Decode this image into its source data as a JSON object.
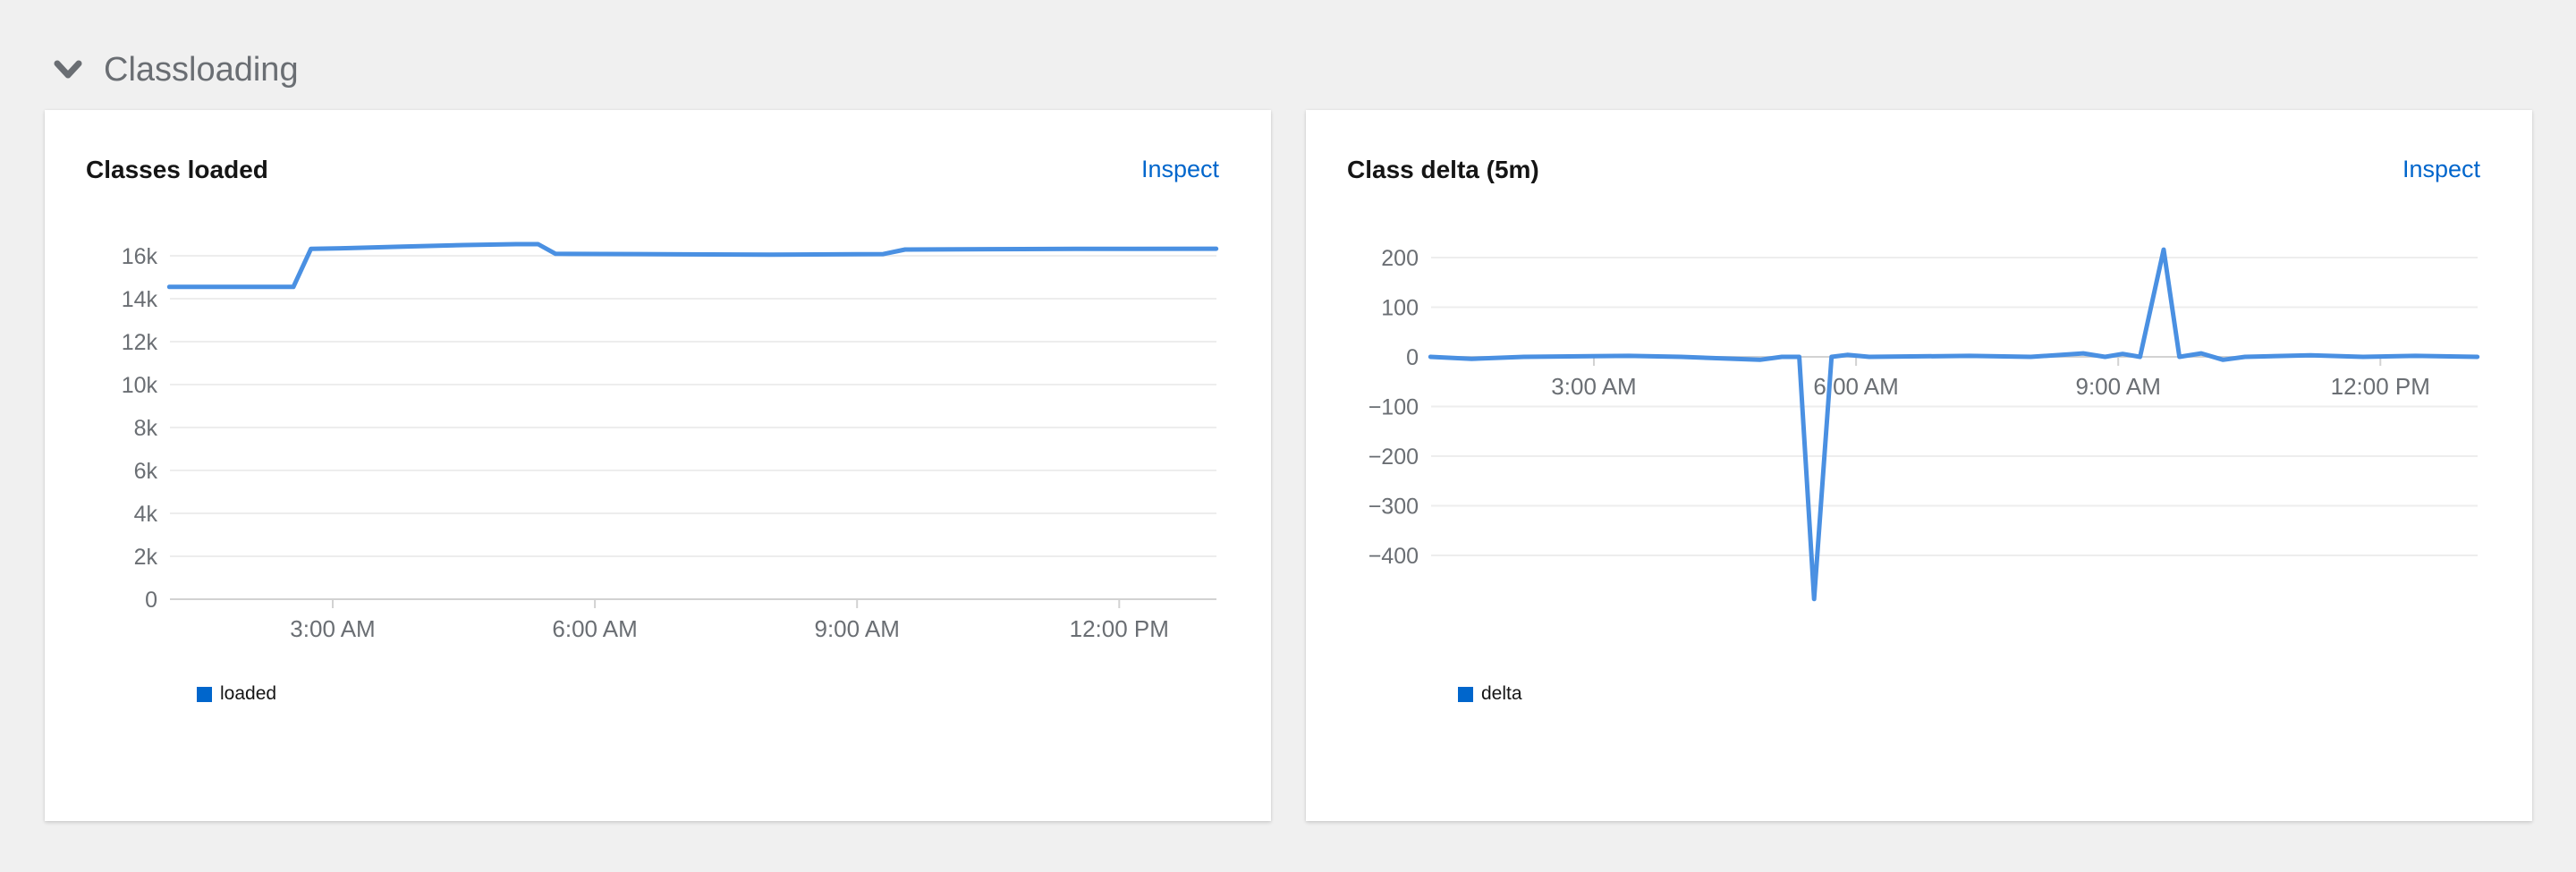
{
  "section": {
    "title": "Classloading",
    "chevron_icon": "chevron-down-icon",
    "expanded": true
  },
  "colors": {
    "accent_link": "#0066cc",
    "line_blue": "#4a90e2",
    "legend_blue": "#0066cc",
    "tick_label_gray": "#6a6e73",
    "gridline_gray": "#ededed",
    "axis_gray": "#d2d2d2",
    "page_background": "#f0f0f0"
  },
  "cards": [
    {
      "title": "Classes loaded",
      "inspect_label": "Inspect",
      "legend_label": "loaded",
      "legend_color": "#0066cc"
    },
    {
      "title": "Class delta (5m)",
      "inspect_label": "Inspect",
      "legend_label": "delta",
      "legend_color": "#0066cc"
    }
  ],
  "chart_data": [
    {
      "type": "line",
      "title": "Classes loaded",
      "legend_entries": [
        "loaded"
      ],
      "legend_position": "bottom-left",
      "grid": true,
      "x_axis": "time of day",
      "x_domain_hours": [
        1.13,
        13.11
      ],
      "y_domain": [
        0,
        16600
      ],
      "x_ticks": [
        {
          "h": 3,
          "label": "3:00 AM"
        },
        {
          "h": 6,
          "label": "6:00 AM"
        },
        {
          "h": 9,
          "label": "9:00 AM"
        },
        {
          "h": 12,
          "label": "12:00 PM"
        }
      ],
      "y_ticks": [
        {
          "v": 16000,
          "label": "16k"
        },
        {
          "v": 14000,
          "label": "14k"
        },
        {
          "v": 12000,
          "label": "12k"
        },
        {
          "v": 10000,
          "label": "10k"
        },
        {
          "v": 8000,
          "label": "8k"
        },
        {
          "v": 6000,
          "label": "6k"
        },
        {
          "v": 4000,
          "label": "4k"
        },
        {
          "v": 2000,
          "label": "2k"
        },
        {
          "v": 0,
          "label": "0"
        }
      ],
      "series": [
        {
          "name": "loaded",
          "color": "#4a90e2",
          "points": [
            [
              1.13,
              14550
            ],
            [
              2.55,
              14550
            ],
            [
              2.75,
              16320
            ],
            [
              3.2,
              16360
            ],
            [
              3.8,
              16430
            ],
            [
              4.5,
              16500
            ],
            [
              5.1,
              16540
            ],
            [
              5.35,
              16540
            ],
            [
              5.55,
              16090
            ],
            [
              6.5,
              16080
            ],
            [
              8.0,
              16050
            ],
            [
              9.0,
              16070
            ],
            [
              9.3,
              16080
            ],
            [
              9.55,
              16290
            ],
            [
              10.5,
              16310
            ],
            [
              11.5,
              16320
            ],
            [
              13.11,
              16330
            ]
          ]
        }
      ]
    },
    {
      "type": "line",
      "title": "Class delta (5m)",
      "legend_entries": [
        "delta"
      ],
      "legend_position": "bottom-left",
      "grid": true,
      "x_axis": "time of day",
      "x_domain_hours": [
        1.13,
        13.11
      ],
      "y_domain": [
        -490,
        230
      ],
      "x_ticks": [
        {
          "h": 3,
          "label": "3:00 AM"
        },
        {
          "h": 6,
          "label": "6:00 AM"
        },
        {
          "h": 9,
          "label": "9:00 AM"
        },
        {
          "h": 12,
          "label": "12:00 PM"
        }
      ],
      "y_ticks": [
        {
          "v": 200,
          "label": "200"
        },
        {
          "v": 100,
          "label": "100"
        },
        {
          "v": 0,
          "label": "0"
        },
        {
          "v": -100,
          "label": "−100"
        },
        {
          "v": -200,
          "label": "−200"
        },
        {
          "v": -300,
          "label": "−300"
        },
        {
          "v": -400,
          "label": "−400"
        }
      ],
      "series": [
        {
          "name": "delta",
          "color": "#4a90e2",
          "points": [
            [
              1.13,
              0
            ],
            [
              1.6,
              -4
            ],
            [
              2.2,
              0
            ],
            [
              3.4,
              2
            ],
            [
              4.0,
              0
            ],
            [
              4.9,
              -6
            ],
            [
              5.15,
              0
            ],
            [
              5.35,
              0
            ],
            [
              5.52,
              -488
            ],
            [
              5.72,
              0
            ],
            [
              5.9,
              4
            ],
            [
              6.15,
              0
            ],
            [
              7.3,
              2
            ],
            [
              8.0,
              0
            ],
            [
              8.6,
              7
            ],
            [
              8.85,
              0
            ],
            [
              9.05,
              6
            ],
            [
              9.25,
              0
            ],
            [
              9.52,
              216
            ],
            [
              9.7,
              0
            ],
            [
              9.95,
              7
            ],
            [
              10.2,
              -6
            ],
            [
              10.45,
              0
            ],
            [
              11.2,
              3
            ],
            [
              11.8,
              0
            ],
            [
              12.4,
              2
            ],
            [
              13.11,
              0
            ]
          ]
        }
      ]
    }
  ]
}
